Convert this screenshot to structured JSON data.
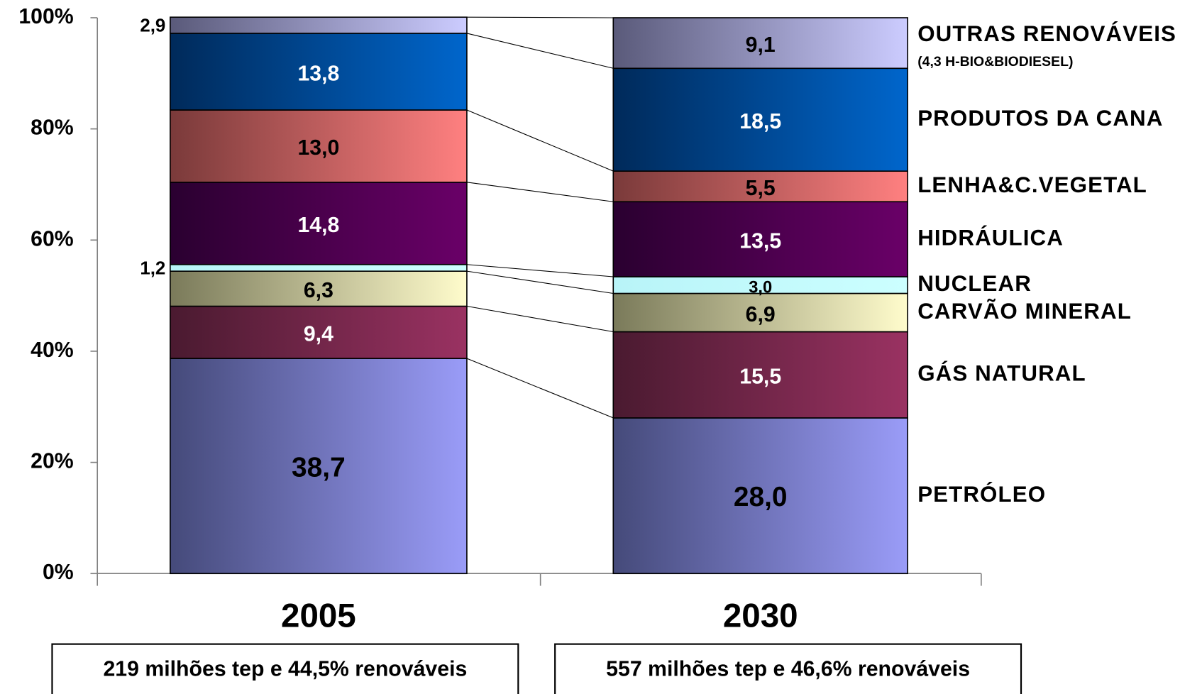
{
  "chart_data": {
    "type": "stacked_bar",
    "categories": [
      "2005",
      "2030"
    ],
    "category_notes": [
      "219 milhões tep e 44,5% renováveis",
      "557 milhões tep e 46,6% renováveis"
    ],
    "ylim": [
      0,
      100
    ],
    "yticks": [
      {
        "value": 0,
        "label": "0%"
      },
      {
        "value": 20,
        "label": "20%"
      },
      {
        "value": 40,
        "label": "40%"
      },
      {
        "value": 60,
        "label": "60%"
      },
      {
        "value": 80,
        "label": "80%"
      },
      {
        "value": 100,
        "label": "100%"
      }
    ],
    "series": [
      {
        "name": "PETRÓLEO",
        "color": "#9a9cf8",
        "color_dark": "#454a7a",
        "label_color": "#000000",
        "values": [
          38.7,
          28.0
        ],
        "value_labels": [
          "38,7",
          "28,0"
        ]
      },
      {
        "name": "GÁS NATURAL",
        "color": "#9a3262",
        "color_dark": "#4a1a30",
        "label_color": "#ffffff",
        "values": [
          9.4,
          15.5
        ],
        "value_labels": [
          "9,4",
          "15,5"
        ]
      },
      {
        "name": "CARVÃO MINERAL",
        "color": "#fffccc",
        "color_dark": "#7a7a5a",
        "label_color": "#000000",
        "values": [
          6.3,
          6.9
        ],
        "value_labels": [
          "6,3",
          "6,9"
        ]
      },
      {
        "name": "NUCLEAR",
        "color": "#ccffff",
        "color_dark": "#b8f4f8",
        "label_color": "#000000",
        "values": [
          1.2,
          3.0
        ],
        "value_labels": [
          "1,2",
          "3,0"
        ]
      },
      {
        "name": "HIDRÁULICA",
        "color": "#6a0068",
        "color_dark": "#2a0030",
        "label_color": "#ffffff",
        "values": [
          14.8,
          13.5
        ],
        "value_labels": [
          "14,8",
          "13,5"
        ]
      },
      {
        "name": "LENHA&C.VEGETAL",
        "color": "#ff8080",
        "color_dark": "#7a3a3a",
        "label_color": "#000000",
        "values": [
          13.0,
          5.5
        ],
        "value_labels": [
          "13,0",
          "5,5"
        ]
      },
      {
        "name": "PRODUTOS DA CANA",
        "color": "#0066cc",
        "color_dark": "#002a5a",
        "label_color": "#ffffff",
        "values": [
          13.8,
          18.5
        ],
        "value_labels": [
          "13,8",
          "18,5"
        ]
      },
      {
        "name": "OUTRAS RENOVÁVEIS",
        "note": "(4,3 H-BIO&BIODIESEL)",
        "color": "#ccccff",
        "color_dark": "#5a5a7a",
        "label_color": "#000000",
        "values": [
          2.9,
          9.1
        ],
        "value_labels": [
          "2,9",
          "9,1"
        ]
      }
    ]
  }
}
